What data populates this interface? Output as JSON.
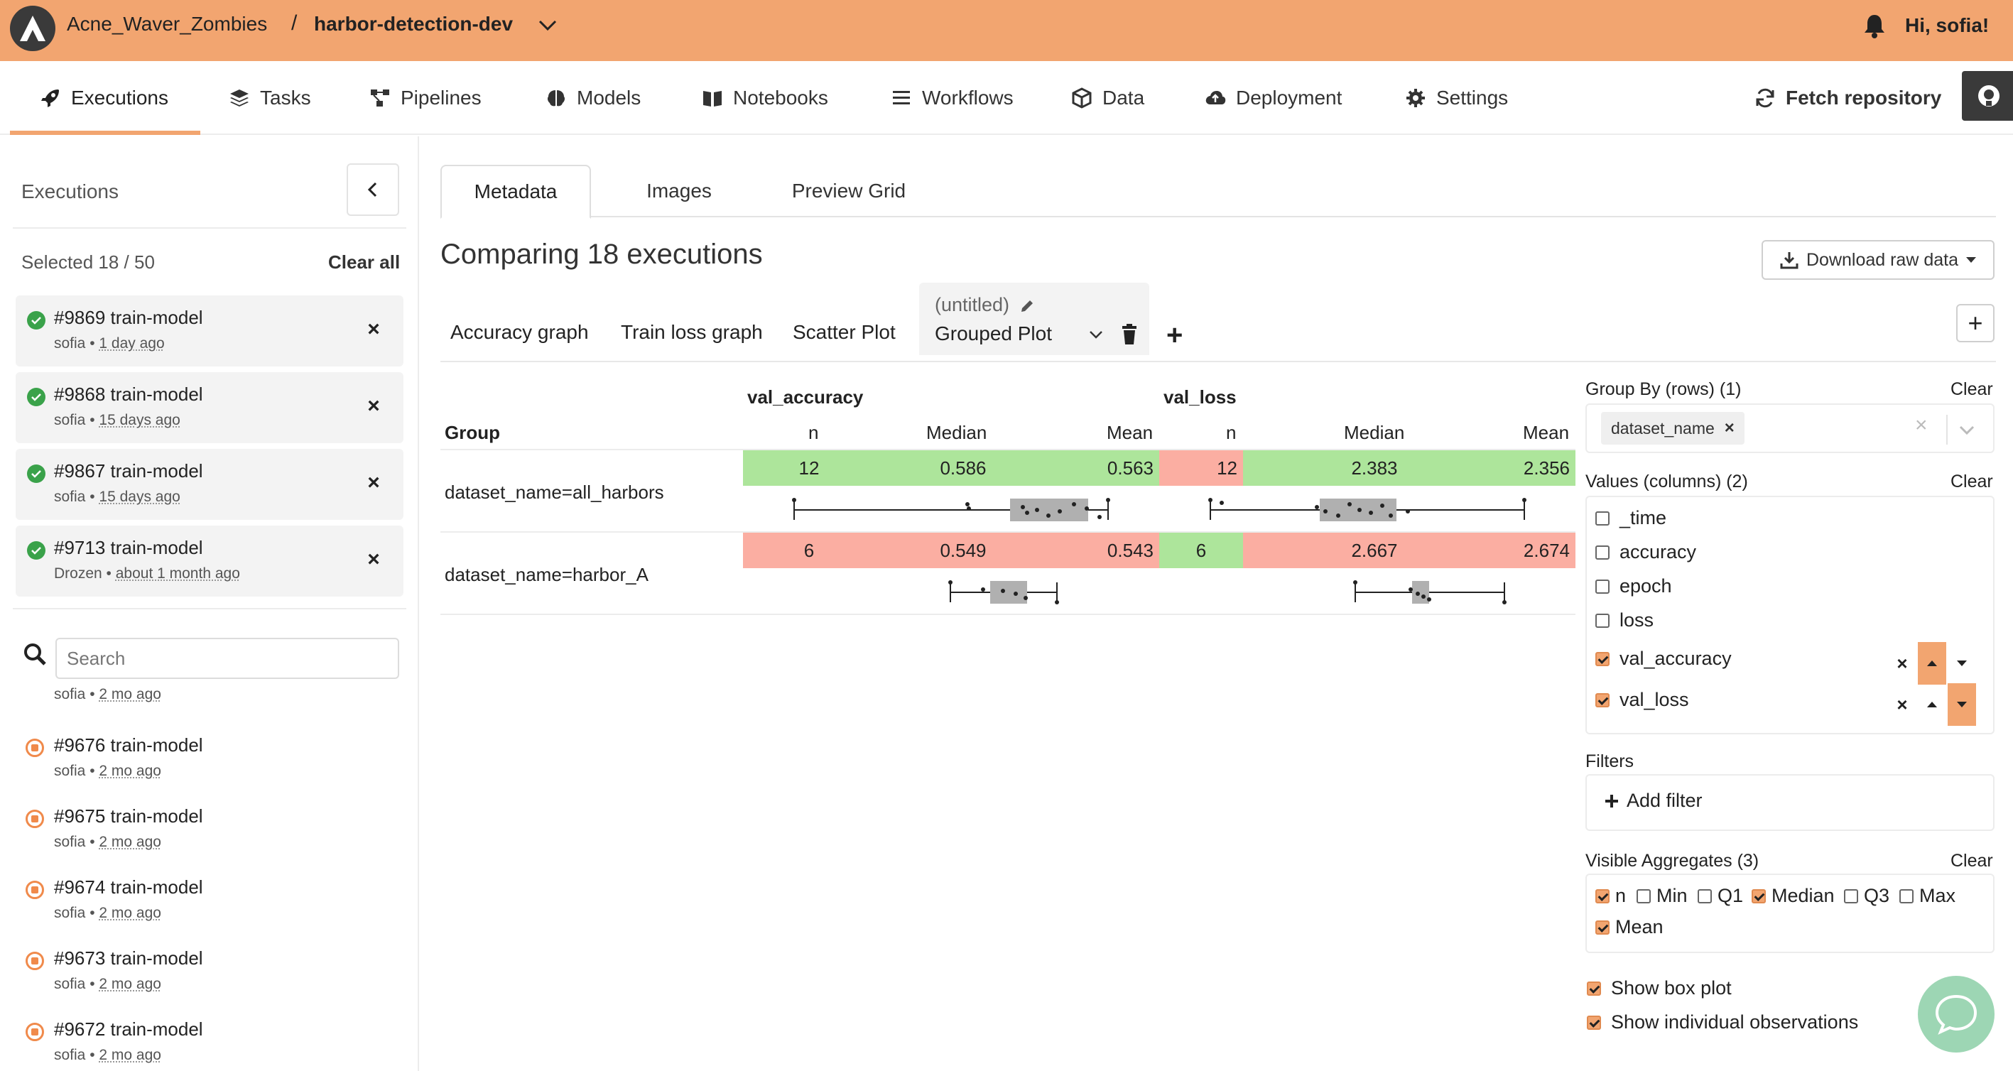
{
  "topbar": {
    "org": "Acne_Waver_Zombies",
    "separator": "/",
    "project": "harbor-detection-dev",
    "greeting": "Hi, sofia!",
    "accent_color": "#f2a570"
  },
  "nav": {
    "items": [
      {
        "label": "Executions",
        "icon": "rocket-icon",
        "active": true
      },
      {
        "label": "Tasks",
        "icon": "layers-icon"
      },
      {
        "label": "Pipelines",
        "icon": "pipeline-icon"
      },
      {
        "label": "Models",
        "icon": "brain-icon"
      },
      {
        "label": "Notebooks",
        "icon": "book-icon"
      },
      {
        "label": "Workflows",
        "icon": "list-icon"
      },
      {
        "label": "Data",
        "icon": "box-icon"
      },
      {
        "label": "Deployment",
        "icon": "cloud-upload-icon"
      },
      {
        "label": "Settings",
        "icon": "gear-icon"
      }
    ],
    "fetch_label": "Fetch repository"
  },
  "sidebar": {
    "title": "Executions",
    "selected_count": "Selected 18 / 50",
    "clear_all": "Clear all",
    "selected": [
      {
        "title": "#9869 train-model",
        "user": "sofia",
        "time": "1 day ago"
      },
      {
        "title": "#9868 train-model",
        "user": "sofia",
        "time": "15 days ago"
      },
      {
        "title": "#9867 train-model",
        "user": "sofia",
        "time": "15 days ago"
      },
      {
        "title": "#9713 train-model",
        "user": "Drozen",
        "time": "about 1 month ago"
      }
    ],
    "search_placeholder": "Search",
    "partial_row": {
      "user": "sofia",
      "time": "2 mo ago"
    },
    "runs": [
      {
        "title": "#9676 train-model",
        "user": "sofia",
        "time": "2 mo ago"
      },
      {
        "title": "#9675 train-model",
        "user": "sofia",
        "time": "2 mo ago"
      },
      {
        "title": "#9674 train-model",
        "user": "sofia",
        "time": "2 mo ago"
      },
      {
        "title": "#9673 train-model",
        "user": "sofia",
        "time": "2 mo ago"
      },
      {
        "title": "#9672 train-model",
        "user": "sofia",
        "time": "2 mo ago"
      }
    ]
  },
  "main": {
    "tabs": [
      "Metadata",
      "Images",
      "Preview Grid"
    ],
    "title": "Comparing 18 executions",
    "download_label": "Download raw data",
    "graph_tabs": [
      "Accuracy graph",
      "Train loss graph",
      "Scatter Plot"
    ],
    "untitled": "(untitled)",
    "plot_type": "Grouped Plot",
    "table": {
      "group_header": "Group",
      "series": [
        "val_accuracy",
        "val_loss"
      ],
      "columns": [
        "n",
        "Median",
        "Mean"
      ],
      "rows": [
        {
          "group": "dataset_name=all_harbors",
          "val_accuracy": {
            "n": "12",
            "median": "0.586",
            "mean": "0.563"
          },
          "val_loss": {
            "n": "12",
            "median": "2.383",
            "mean": "2.356"
          }
        },
        {
          "group": "dataset_name=harbor_A",
          "val_accuracy": {
            "n": "6",
            "median": "0.549",
            "mean": "0.543"
          },
          "val_loss": {
            "n": "6",
            "median": "2.667",
            "mean": "2.674"
          }
        }
      ],
      "better_color": "#ade59b",
      "worse_color": "#fbaea2"
    }
  },
  "panel": {
    "group_by_label": "Group By (rows) (1)",
    "clear": "Clear",
    "group_chip": "dataset_name",
    "values_label": "Values (columns) (2)",
    "values": [
      {
        "label": "_time",
        "checked": false
      },
      {
        "label": "accuracy",
        "checked": false
      },
      {
        "label": "epoch",
        "checked": false
      },
      {
        "label": "loss",
        "checked": false
      },
      {
        "label": "val_accuracy",
        "checked": true
      },
      {
        "label": "val_loss",
        "checked": true
      }
    ],
    "filters_label": "Filters",
    "add_filter": "Add filter",
    "aggregates_label": "Visible Aggregates (3)",
    "aggregates": [
      {
        "label": "n",
        "checked": true
      },
      {
        "label": "Min",
        "checked": false
      },
      {
        "label": "Q1",
        "checked": false
      },
      {
        "label": "Median",
        "checked": true
      },
      {
        "label": "Q3",
        "checked": false
      },
      {
        "label": "Max",
        "checked": false
      },
      {
        "label": "Mean",
        "checked": true
      }
    ],
    "show_box_plot": "Show box plot",
    "show_observations": "Show individual observations"
  }
}
